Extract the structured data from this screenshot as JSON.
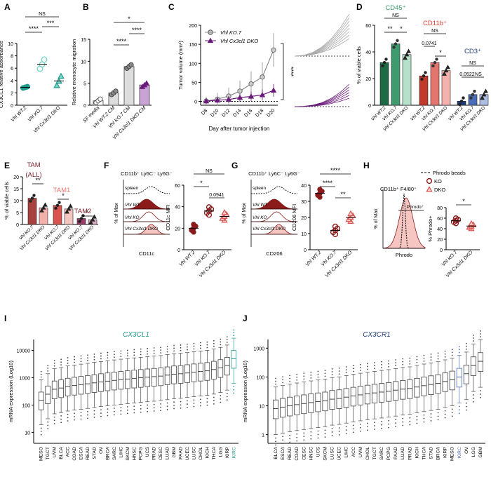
{
  "figure": {
    "panel_labels": [
      "A",
      "B",
      "C",
      "D",
      "E",
      "F",
      "G",
      "H",
      "I",
      "J"
    ]
  },
  "colors": {
    "teal": "#1f9a8a",
    "teal_light": "#7fd6c8",
    "green_dark": "#1d6b45",
    "green_mid": "#3d9b6e",
    "green_light": "#b5e0c9",
    "red_dark": "#8b1a1a",
    "red_mid": "#d9534f",
    "red_light": "#f4b6b2",
    "navy": "#1f3d7a",
    "blue_mid": "#4b6cb7",
    "blue_light": "#aebfe6",
    "purple": "#6a1b7a",
    "gray": "#8a8a8a",
    "pink": "#e8a0a0",
    "maroon": "#7a1f2b"
  },
  "chart_data": [
    {
      "panel": "A",
      "type": "scatter",
      "categories": [
        "Vhl WT.2",
        "Vhl KO.7",
        "Vhl Cx3cl1 DKO"
      ],
      "series": [
        {
          "values": [
            [
              2.8,
              2.9,
              3.0
            ],
            [
              5.9,
              6.6,
              7.4
            ],
            [
              3.2,
              3.9,
              4.7
            ]
          ]
        }
      ],
      "ylabel": "CX3CL1 relative absorbance",
      "ylim": [
        0,
        10
      ],
      "yticks": [
        "0",
        "2",
        "4",
        "6",
        "8",
        "10"
      ],
      "sig": [
        "NS",
        "****",
        "***"
      ]
    },
    {
      "panel": "B",
      "type": "bar",
      "categories": [
        "SF media",
        "Vhl WT.2 CM",
        "Vhl KO.7 CM",
        "Vhl Cx3cl1 DKO CM"
      ],
      "values": [
        1.0,
        2.8,
        8.8,
        4.6
      ],
      "ylabel": "Relative monocyte migration",
      "ylim": [
        0,
        15
      ],
      "yticks": [
        "0",
        "5",
        "10",
        "15"
      ],
      "sig": [
        "*",
        "****",
        "****"
      ]
    },
    {
      "panel": "C",
      "type": "line",
      "x": [
        "D8",
        "D10",
        "D12",
        "D14",
        "D16",
        "D18",
        "D20"
      ],
      "series": [
        {
          "name": "Vhl KO.7",
          "values": [
            1,
            6,
            14,
            27,
            46,
            64,
            135
          ]
        },
        {
          "name": "Vhl Cx3cl1 DKO",
          "values": [
            1,
            3,
            5,
            10,
            13,
            17,
            29
          ]
        }
      ],
      "ylabel": "Tumor volume (mm³)",
      "xlabel": "Day after tumor injection",
      "ylim": [
        -10,
        200
      ],
      "yticks": [
        "0",
        "50",
        "100",
        "150",
        "200"
      ],
      "sig": "****"
    },
    {
      "panel": "D",
      "type": "bar",
      "groups": [
        "CD45⁺",
        "CD11b⁺",
        "CD3⁺"
      ],
      "categories": [
        "Vhl WT.2",
        "Vhl KO.7",
        "Vhl Cx3cl1 DKO"
      ],
      "values": [
        [
          32,
          46,
          38
        ],
        [
          22,
          32,
          26
        ],
        [
          3,
          8,
          8
        ]
      ],
      "ylabel": "% of viable cells",
      "ylim": [
        0,
        60
      ],
      "yticks": [
        "0",
        "20",
        "40",
        "60"
      ],
      "sig": [
        "NS",
        "**",
        "*",
        "NS",
        "0.0741",
        "*",
        "NS",
        "0.0522",
        "NS"
      ]
    },
    {
      "panel": "E",
      "type": "bar",
      "groups": [
        "TAM (ALL)",
        "TAM1",
        "TAM2"
      ],
      "categories": [
        "Vhl KO.7",
        "Vhl Cx3cl1 DKO"
      ],
      "values": [
        [
          11,
          7
        ],
        [
          8,
          6.5
        ],
        [
          2.5,
          2
        ]
      ],
      "ylabel": "% of viable cells",
      "ylim": [
        0,
        20
      ],
      "yticks": [
        "0",
        "5",
        "10",
        "15",
        "20"
      ],
      "sig": [
        "**",
        "*",
        "*"
      ]
    },
    {
      "panel": "F",
      "type": "scatter",
      "gate": "CD11b⁺ Ly6C⁻ Ly6G⁻",
      "histogram_labels": [
        "spleen",
        "Vhl WT",
        "Vhl KO",
        "Vhl Cx3cl1 DKO"
      ],
      "histogram_xlabel": "CD11c",
      "histogram_ylabel": "% of Max",
      "categories": [
        "Vhl WT.2",
        "Vhl KO.7",
        "Vhl Cx3cl1 DKO"
      ],
      "values": [
        20,
        36,
        31
      ],
      "ylabel": "CD11c MFI",
      "ylim": [
        0,
        60
      ],
      "yticks": [
        "0",
        "20",
        "40",
        "60"
      ],
      "sig": [
        "NS",
        "*",
        "0.0941"
      ]
    },
    {
      "panel": "G",
      "type": "scatter",
      "gate": "CD11b⁺ Ly6C⁻ Ly6G⁻",
      "histogram_labels": [
        "spleen",
        "Vhl WT",
        "Vhl KO",
        "Vhl Cx3cl1 DKO"
      ],
      "histogram_xlabel": "CD206",
      "histogram_ylabel": "% of Max",
      "categories": [
        "Vhl WT.2",
        "Vhl KO.7",
        "Vhl Cx3cl1 DKO"
      ],
      "values": [
        35,
        12,
        20
      ],
      "ylabel": "CD206 MFI",
      "ylim": [
        0,
        40
      ],
      "yticks": [
        "0",
        "10",
        "20",
        "30",
        "40"
      ],
      "sig": [
        "****",
        "****",
        "**"
      ]
    },
    {
      "panel": "H",
      "type": "scatter",
      "gate": "CD11b⁺ F4/80⁺",
      "legend": [
        "Phrodo beads",
        "KO",
        "DKO"
      ],
      "gate_label": "Phrodo⁺",
      "histogram_xlabel": "Phrodo",
      "histogram_ylabel": "% of Max",
      "categories": [
        "Vhl KO.7",
        "Vhl Cx3cl1 DKO"
      ],
      "values": [
        55,
        45
      ],
      "ylabel": "% Phrodo+",
      "ylim": [
        0,
        80
      ],
      "yticks": [
        "0",
        "20",
        "40",
        "60",
        "80"
      ],
      "sig": [
        "*"
      ]
    },
    {
      "panel": "I",
      "type": "box",
      "title": "CX3CL1",
      "categories": [
        "MESO",
        "TGCT",
        "UVM",
        "BLCA",
        "ACC",
        "COAD",
        "ESCA",
        "READ",
        "STAD",
        "OV",
        "BRCA",
        "SARC",
        "LIHC",
        "SKCM",
        "HNSC",
        "PCPG",
        "UCS",
        "PRAD",
        "CESC",
        "LUAD",
        "GBM",
        "PAAD",
        "UCEC",
        "LUSC",
        "CHOL",
        "KICH",
        "THCA",
        "LGG",
        "KIRP",
        "KIRC"
      ],
      "medians": [
        150,
        250,
        380,
        420,
        480,
        520,
        560,
        600,
        650,
        700,
        750,
        800,
        850,
        900,
        950,
        1000,
        1050,
        1100,
        1150,
        1250,
        1350,
        1400,
        1500,
        1600,
        1700,
        1800,
        2000,
        2300,
        2800,
        5000
      ],
      "ylabel": "mRNA expression (Log10)",
      "yticks": [
        "10",
        "100",
        "1000",
        "10000"
      ]
    },
    {
      "panel": "J",
      "type": "box",
      "title": "CX3CR1",
      "categories": [
        "BLCA",
        "ESCA",
        "READ",
        "COAD",
        "CESC",
        "HNSC",
        "UCS",
        "SKCM",
        "LUSC",
        "UCEC",
        "LIHC",
        "ACC",
        "UVM",
        "CHOL",
        "TGCT",
        "SARC",
        "PCPG",
        "PAAD",
        "LUAD",
        "PRAD",
        "KICH",
        "THCA",
        "STAD",
        "BRCA",
        "KIRP",
        "MESO",
        "KIRC",
        "OV",
        "LGG",
        "GBM"
      ],
      "medians": [
        8,
        9,
        10,
        11,
        12,
        13,
        14,
        15,
        17,
        18,
        20,
        22,
        24,
        26,
        28,
        30,
        32,
        35,
        38,
        40,
        45,
        50,
        55,
        60,
        70,
        80,
        100,
        130,
        250,
        350
      ],
      "ylabel": "mRNA expression (Log10)",
      "yticks": [
        "1",
        "10",
        "100",
        "1000"
      ]
    }
  ]
}
